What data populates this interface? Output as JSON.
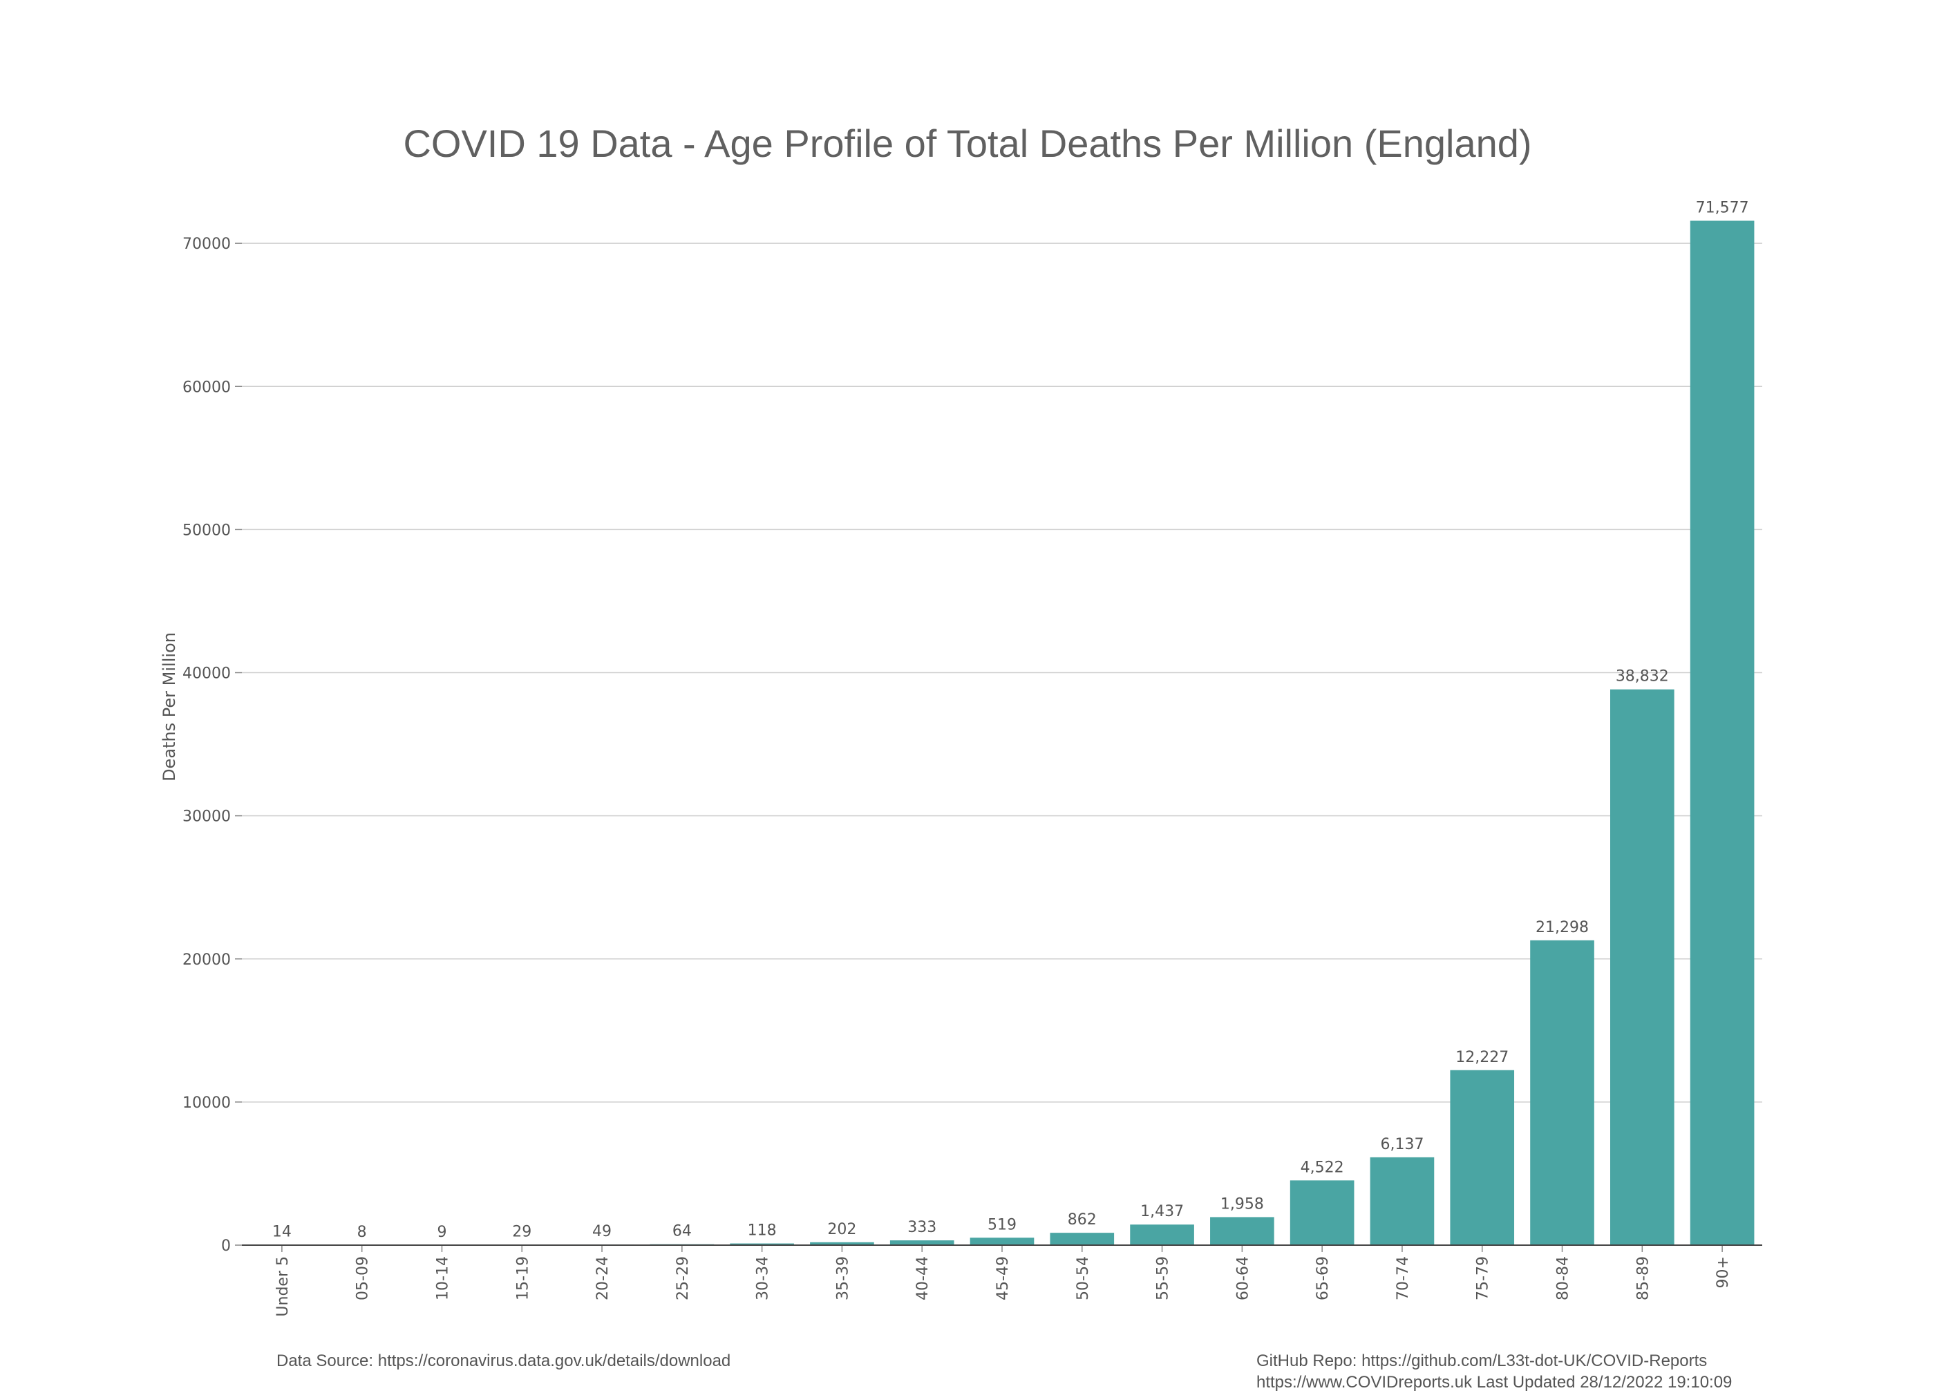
{
  "chart_data": {
    "type": "bar",
    "title": "COVID 19 Data - Age Profile of Total Deaths Per Million (England)",
    "xlabel": "",
    "ylabel": "Deaths Per Million",
    "categories": [
      "Under 5",
      "05-09",
      "10-14",
      "15-19",
      "20-24",
      "25-29",
      "30-34",
      "35-39",
      "40-44",
      "45-49",
      "50-54",
      "55-59",
      "60-64",
      "65-69",
      "70-74",
      "75-79",
      "80-84",
      "85-89",
      "90+"
    ],
    "values": [
      14,
      8,
      9,
      29,
      49,
      64,
      118,
      202,
      333,
      519,
      862,
      1437,
      1958,
      4522,
      6137,
      12227,
      21298,
      38832,
      71577
    ],
    "data_labels": [
      "14",
      "8",
      "9",
      "29",
      "49",
      "64",
      "118",
      "202",
      "333",
      "519",
      "862",
      "1,437",
      "1,958",
      "4,522",
      "6,137",
      "12,227",
      "21,298",
      "38,832",
      "71,577"
    ],
    "ylim": [
      0,
      73000
    ],
    "yticks": [
      0,
      10000,
      20000,
      30000,
      40000,
      50000,
      60000,
      70000
    ],
    "grid": true,
    "legend": "none",
    "bar_color": "#4aa5a3"
  },
  "footer": {
    "source": "Data Source: https://coronavirus.data.gov.uk/details/download",
    "repo": "GitHub Repo: https://github.com/L33t-dot-UK/COVID-Reports",
    "site": "https://www.COVIDreports.uk   Last Updated 28/12/2022 19:10:09"
  }
}
